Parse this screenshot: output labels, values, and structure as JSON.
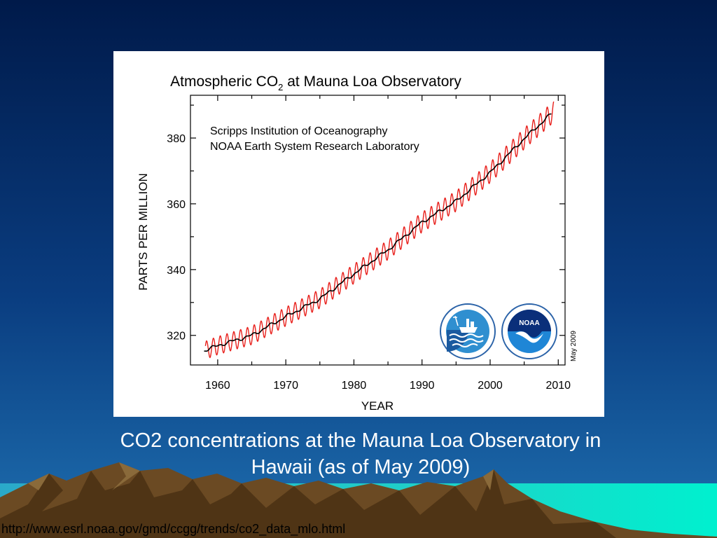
{
  "slide": {
    "caption_line_1": "CO2 concentrations at the Mauna Loa Observatory in",
    "caption_line_2": "Hawaii (as of May 2009)",
    "source_url": "http://www.esrl.noaa.gov/gmd/ccgg/trends/co2_data_mlo.html",
    "colors": {
      "background_top": "#001a4a",
      "background_bottom": "#1e6fb0",
      "sea": "#00e0c8",
      "mountain": "#6b4a23",
      "caption_text": "#ffffff"
    }
  },
  "chart_data": {
    "type": "line",
    "title_prefix": "Atmospheric CO",
    "title_subscript": "2",
    "title_suffix": " at Mauna Loa Observatory",
    "annotation_line_1": "Scripps Institution of Oceanography",
    "annotation_line_2": "NOAA Earth System Research Laboratory",
    "date_stamp": "May 2009",
    "xlabel": "YEAR",
    "ylabel": "PARTS PER MILLION",
    "xlim": [
      1956,
      2011
    ],
    "ylim": [
      311,
      393
    ],
    "xticks": [
      "1960",
      "1970",
      "1980",
      "1990",
      "2000",
      "2010"
    ],
    "yticks": [
      "320",
      "340",
      "360",
      "380"
    ],
    "series": [
      {
        "kind": "monthly",
        "color": "#e8201c",
        "x_start": 1958.2,
        "x_end": 2009.35,
        "seasonal_amplitude_ppm": 3.2
      },
      {
        "kind": "trend",
        "color": "#000000",
        "x": [
          1958,
          1960,
          1965,
          1970,
          1975,
          1980,
          1985,
          1990,
          1995,
          2000,
          2005,
          2009
        ],
        "y": [
          315.3,
          316.9,
          320.0,
          325.7,
          331.1,
          338.7,
          346.0,
          354.4,
          360.8,
          369.5,
          379.8,
          387.4
        ]
      }
    ],
    "logos": [
      "scripps-logo",
      "noaa-logo"
    ],
    "logo_noaa_text": "NOAA"
  }
}
